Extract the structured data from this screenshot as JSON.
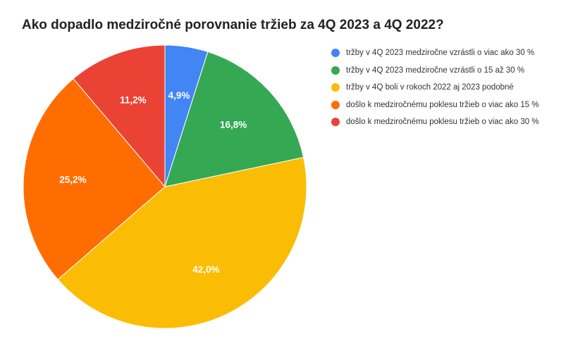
{
  "chart_data": {
    "type": "pie",
    "title": "Ako dopadlo medziročné porovnanie tržieb za 4Q 2023 a 4Q 2022?",
    "legend_position": "right",
    "start_angle": "12 o'clock",
    "direction": "clockwise",
    "slices": [
      {
        "label": "tržby v 4Q 2023 medziročne vzrástli o viac ako 30 %",
        "value": 4.9,
        "value_label": "4,9%",
        "color": "#4285F4"
      },
      {
        "label": "tržby v 4Q 2023 medziročne vzrástli o 15 až 30 %",
        "value": 16.8,
        "value_label": "16,8%",
        "color": "#34A853"
      },
      {
        "label": "tržby v 4Q boli v rokoch 2022 aj 2023 podobné",
        "value": 42.0,
        "value_label": "42,0%",
        "color": "#FBBC04"
      },
      {
        "label": "došlo k medziročnému poklesu tržieb o viac ako 15 %",
        "value": 25.2,
        "value_label": "25,2%",
        "color": "#FF6D01"
      },
      {
        "label": "došlo k medziročnému poklesu tržieb o viac ako 30 %",
        "value": 11.2,
        "value_label": "11,2%",
        "color": "#EA4335"
      }
    ]
  }
}
